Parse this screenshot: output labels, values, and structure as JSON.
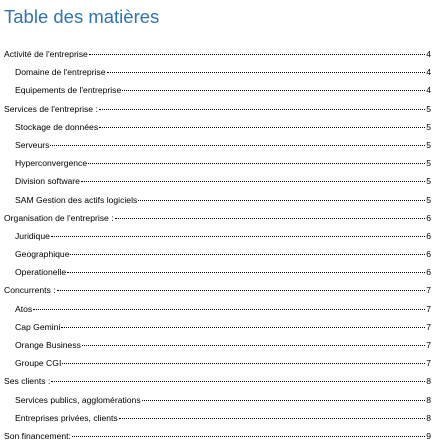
{
  "toc": {
    "title": "Table des matières",
    "entries": [
      {
        "text": "Activité de l'entreprise",
        "page": "4",
        "level": 1
      },
      {
        "text": "Domaine de l'entreprise",
        "page": "4",
        "level": 2
      },
      {
        "text": "Equipements de l'entreprise",
        "page": "4",
        "level": 2
      },
      {
        "text": "Services de l'entreprise :",
        "page": "5",
        "level": 1
      },
      {
        "text": "Stockage de données",
        "page": "5",
        "level": 2
      },
      {
        "text": "Serveurs",
        "page": "5",
        "level": 2
      },
      {
        "text": "Hyperconvergence",
        "page": "5",
        "level": 2
      },
      {
        "text": "Division software",
        "page": "5",
        "level": 2
      },
      {
        "text": "SAM Gestion des actifs logiciels",
        "page": "5",
        "level": 2
      },
      {
        "text": "Organisation de l'entreprise :",
        "page": "6",
        "level": 1
      },
      {
        "text": "Juridique",
        "page": "6",
        "level": 2
      },
      {
        "text": "Geographique",
        "page": "6",
        "level": 2
      },
      {
        "text": "Operationelle",
        "page": "6",
        "level": 2
      },
      {
        "text": "Concurrents :",
        "page": "7",
        "level": 1
      },
      {
        "text": "Atos",
        "page": "7",
        "level": 2
      },
      {
        "text": "Cap Gemini",
        "page": "7",
        "level": 2
      },
      {
        "text": "Orange Business",
        "page": "7",
        "level": 2
      },
      {
        "text": "Groupe CGI",
        "page": "7",
        "level": 2
      },
      {
        "text": "Ses clients :",
        "page": "8",
        "level": 1
      },
      {
        "text": "Services publics, agglomérations",
        "page": "8",
        "level": 2
      },
      {
        "text": "Entreprises privées, clients",
        "page": "8",
        "level": 2
      },
      {
        "text": "Son financement:",
        "page": "9",
        "level": 1
      }
    ]
  }
}
